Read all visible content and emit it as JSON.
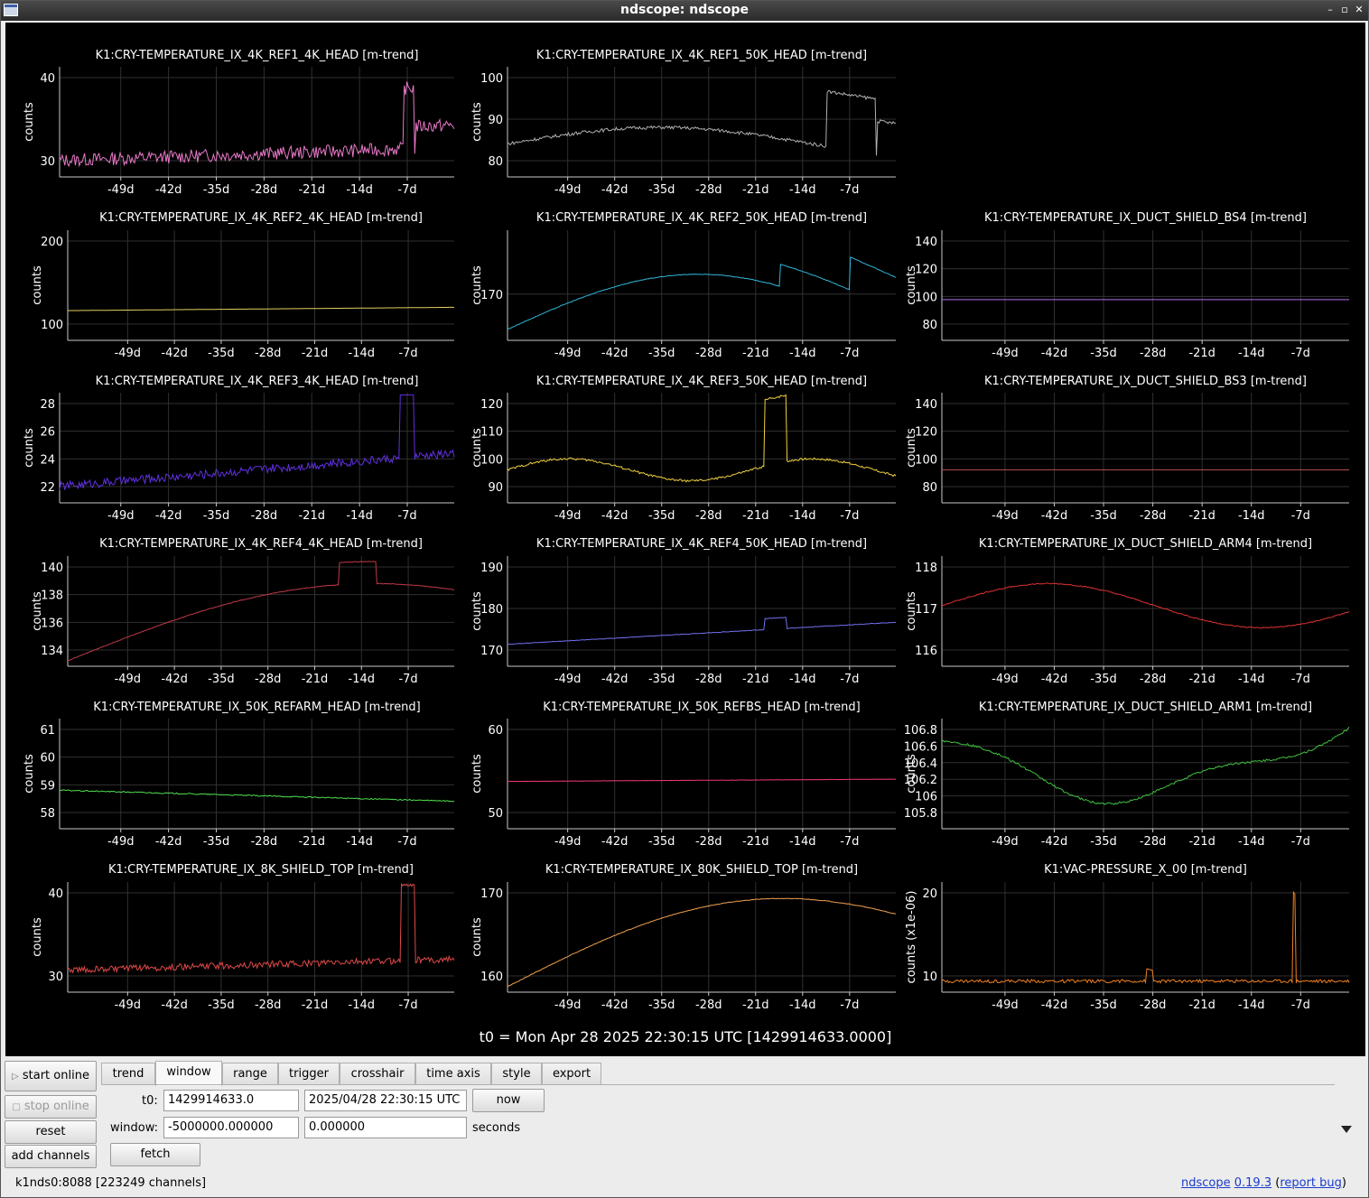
{
  "window": {
    "title": "ndscope: ndscope"
  },
  "t0_label": "t0 = Mon Apr 28 2025 22:30:15 UTC [1429914633.0000]",
  "x_ticks": [
    "-49d",
    "-42d",
    "-35d",
    "-28d",
    "-21d",
    "-14d",
    "-7d"
  ],
  "plots": [
    {
      "title": "K1:CRY-TEMPERATURE_IX_4K_REF1_4K_HEAD [m-trend]",
      "ylabel": "counts",
      "color": "#e878c8",
      "yticks": [
        "40",
        "30"
      ]
    },
    {
      "title": "K1:CRY-TEMPERATURE_IX_4K_REF1_50K_HEAD [m-trend]",
      "ylabel": "counts",
      "color": "#b0b0b0",
      "yticks": [
        "100",
        "90",
        "80"
      ]
    },
    {
      "title": "K1:CRY-TEMPERATURE_IX_4K_REF2_4K_HEAD [m-trend]",
      "ylabel": "counts",
      "color": "#e0d060",
      "yticks": [
        "200",
        "100"
      ]
    },
    {
      "title": "K1:CRY-TEMPERATURE_IX_4K_REF2_50K_HEAD [m-trend]",
      "ylabel": "counts",
      "color": "#30b8d8",
      "yticks": [
        "170"
      ]
    },
    {
      "title": "K1:CRY-TEMPERATURE_IX_DUCT_SHIELD_BS4 [m-trend]",
      "ylabel": "counts",
      "color": "#b070e8",
      "yticks": [
        "140",
        "120",
        "100",
        "80"
      ]
    },
    {
      "title": "K1:CRY-TEMPERATURE_IX_4K_REF3_4K_HEAD [m-trend]",
      "ylabel": "counts",
      "color": "#6030e0",
      "yticks": [
        "28",
        "26",
        "24",
        "22"
      ]
    },
    {
      "title": "K1:CRY-TEMPERATURE_IX_4K_REF3_50K_HEAD [m-trend]",
      "ylabel": "counts",
      "color": "#f0d040",
      "yticks": [
        "120",
        "110",
        "100",
        "90"
      ]
    },
    {
      "title": "K1:CRY-TEMPERATURE_IX_DUCT_SHIELD_BS3 [m-trend]",
      "ylabel": "counts",
      "color": "#c05050",
      "yticks": [
        "140",
        "120",
        "100",
        "80"
      ]
    },
    {
      "title": "K1:CRY-TEMPERATURE_IX_4K_REF4_4K_HEAD [m-trend]",
      "ylabel": "counts",
      "color": "#c03848",
      "yticks": [
        "140",
        "138",
        "136",
        "134"
      ]
    },
    {
      "title": "K1:CRY-TEMPERATURE_IX_4K_REF4_50K_HEAD [m-trend]",
      "ylabel": "counts",
      "color": "#7070f0",
      "yticks": [
        "190",
        "180",
        "170"
      ]
    },
    {
      "title": "K1:CRY-TEMPERATURE_IX_DUCT_SHIELD_ARM4 [m-trend]",
      "ylabel": "counts",
      "color": "#e03030",
      "yticks": [
        "118",
        "117",
        "116"
      ]
    },
    {
      "title": "K1:CRY-TEMPERATURE_IX_50K_REFARM_HEAD [m-trend]",
      "ylabel": "counts",
      "color": "#50e050",
      "yticks": [
        "61",
        "60",
        "59",
        "58"
      ]
    },
    {
      "title": "K1:CRY-TEMPERATURE_IX_50K_REFBS_HEAD [m-trend]",
      "ylabel": "counts",
      "color": "#f03878",
      "yticks": [
        "60",
        "50"
      ]
    },
    {
      "title": "K1:CRY-TEMPERATURE_IX_DUCT_SHIELD_ARM1 [m-trend]",
      "ylabel": "counts",
      "color": "#40c040",
      "yticks": [
        "106.8",
        "106.6",
        "106.4",
        "106.2",
        "106",
        "105.8"
      ]
    },
    {
      "title": "K1:CRY-TEMPERATURE_IX_8K_SHIELD_TOP [m-trend]",
      "ylabel": "counts",
      "color": "#e04848",
      "yticks": [
        "40",
        "30"
      ]
    },
    {
      "title": "K1:CRY-TEMPERATURE_IX_80K_SHIELD_TOP [m-trend]",
      "ylabel": "counts",
      "color": "#f0a050",
      "yticks": [
        "170",
        "160"
      ]
    },
    {
      "title": "K1:VAC-PRESSURE_X_00 [m-trend]",
      "ylabel": "counts (x1e-06)",
      "color": "#f08020",
      "yticks": [
        "20",
        "10"
      ]
    }
  ],
  "sidebar": {
    "start_online": "start online",
    "stop_online": "stop online",
    "reset": "reset",
    "add_channels": "add channels"
  },
  "tabs": [
    "trend",
    "window",
    "range",
    "trigger",
    "crosshair",
    "time axis",
    "style",
    "export"
  ],
  "window_tab": {
    "t0_label": "t0:",
    "t0_gps": "1429914633.0",
    "t0_utc": "2025/04/28 22:30:15 UTC",
    "now": "now",
    "window_label": "window:",
    "window_start": "-5000000.000000",
    "window_end": "0.000000",
    "units": "seconds",
    "fetch": "fetch"
  },
  "status": "k1nds0:8088  [223249 channels]",
  "footer": {
    "app": "ndscope",
    "version": "0.19.3",
    "open": "(",
    "bug": "report bug",
    "close": ")"
  }
}
